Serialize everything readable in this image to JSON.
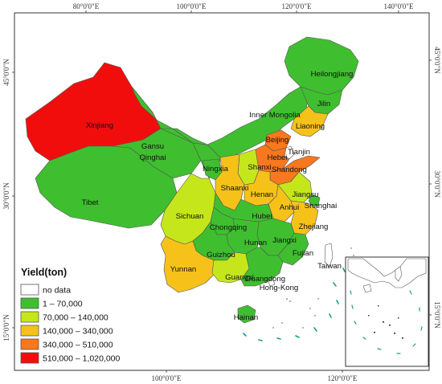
{
  "colors": {
    "no_data": "#ffffff",
    "class1": "#3fbf2f",
    "class2": "#c6e61c",
    "class3": "#f6c21a",
    "class4": "#f7781e",
    "class5": "#f20d0d",
    "border": "#555555",
    "sea_line": "#1a9c8c"
  },
  "graticule": {
    "top_labels": [
      "80°0'0\"E",
      "100°0'0\"E",
      "120°0'0\"E",
      "140°0'0\"E"
    ],
    "bottom_labels": [
      "100°0'0\"E",
      "120°0'0\"E"
    ],
    "left_labels": [
      "45°0'0\"N",
      "30°0'0\"N",
      "15°0'0\"N"
    ],
    "right_labels": [
      "45°0'0\"N",
      "30°0'0\"N",
      "15°0'0\"N"
    ]
  },
  "provinces": [
    {
      "name": "Xinjiang",
      "class": 5
    },
    {
      "name": "Tibet",
      "class": 1
    },
    {
      "name": "Qinghai",
      "class": 1
    },
    {
      "name": "Gansu",
      "class": 1
    },
    {
      "name": "Inner Mongolia",
      "class": 1
    },
    {
      "name": "Heilongjiang",
      "class": 1
    },
    {
      "name": "Jilin",
      "class": 1
    },
    {
      "name": "Liaoning",
      "class": 3
    },
    {
      "name": "Beijing",
      "class": 4
    },
    {
      "name": "Tianjin",
      "class": 0
    },
    {
      "name": "Hebei",
      "class": 4
    },
    {
      "name": "Shandong",
      "class": 4
    },
    {
      "name": "Ningxia",
      "class": 1
    },
    {
      "name": "Shanxi",
      "class": 2
    },
    {
      "name": "Shaanxi",
      "class": 3
    },
    {
      "name": "Henan",
      "class": 3
    },
    {
      "name": "Jiangsu",
      "class": 2
    },
    {
      "name": "Anhui",
      "class": 3
    },
    {
      "name": "Shanghai",
      "class": 1
    },
    {
      "name": "Hubei",
      "class": 1
    },
    {
      "name": "Zhejiang",
      "class": 3
    },
    {
      "name": "Sichuan",
      "class": 2
    },
    {
      "name": "Chongqing",
      "class": 1
    },
    {
      "name": "Hunan",
      "class": 1
    },
    {
      "name": "Jiangxi",
      "class": 1
    },
    {
      "name": "Fujian",
      "class": 1
    },
    {
      "name": "Guizhou",
      "class": 1
    },
    {
      "name": "Yunnan",
      "class": 3
    },
    {
      "name": "Guangxi",
      "class": 2
    },
    {
      "name": "Guangdong",
      "class": 1
    },
    {
      "name": "Hong-Kong",
      "class": 0
    },
    {
      "name": "Taiwan",
      "class": 0
    },
    {
      "name": "Hainan",
      "class": 1
    }
  ],
  "legend": {
    "title": "Yield(ton)",
    "items": [
      {
        "label": "no data",
        "color_key": "no_data"
      },
      {
        "label": "1 – 70,000",
        "color_key": "class1"
      },
      {
        "label": "70,000 – 140,000",
        "color_key": "class2"
      },
      {
        "label": "140,000 – 340,000",
        "color_key": "class3"
      },
      {
        "label": "340,000 – 510,000",
        "color_key": "class4"
      },
      {
        "label": "510,000 – 1,020,000",
        "color_key": "class5"
      }
    ]
  }
}
